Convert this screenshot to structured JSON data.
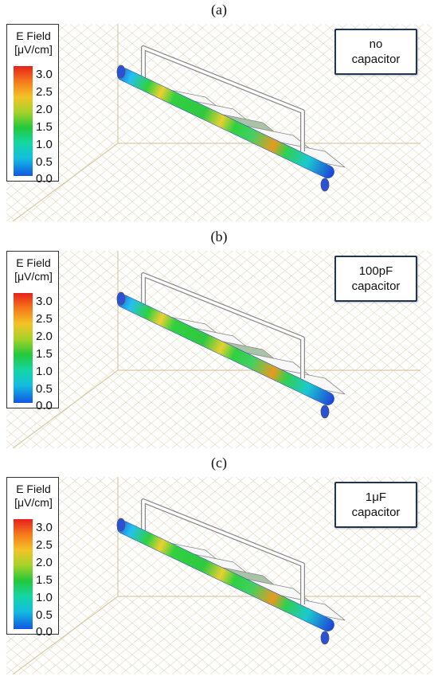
{
  "panels": [
    {
      "label": "(a)",
      "legend_title_1": "E Field",
      "legend_title_2": "[μV/cm]",
      "ticks": [
        "3.0",
        "2.5",
        "2.0",
        "1.5",
        "1.0",
        "0.5",
        "0.0"
      ],
      "callout_line1": "no",
      "callout_line2": "capacitor"
    },
    {
      "label": "(b)",
      "legend_title_1": "E Field",
      "legend_title_2": "[μV/cm]",
      "ticks": [
        "3.0",
        "2.5",
        "2.0",
        "1.5",
        "1.0",
        "0.5",
        "0.0"
      ],
      "callout_line1": "100pF",
      "callout_line2": "capacitor"
    },
    {
      "label": "(c)",
      "legend_title_1": "E Field",
      "legend_title_2": "[μV/cm]",
      "ticks": [
        "3.0",
        "2.5",
        "2.0",
        "1.5",
        "1.0",
        "0.5",
        "0.0"
      ],
      "callout_line1": "1μF",
      "callout_line2": "capacitor"
    }
  ],
  "colors": {
    "grid": "#e6dcc4",
    "callout_border": "#1f3550",
    "cap_pad": "#a9c3a6"
  }
}
